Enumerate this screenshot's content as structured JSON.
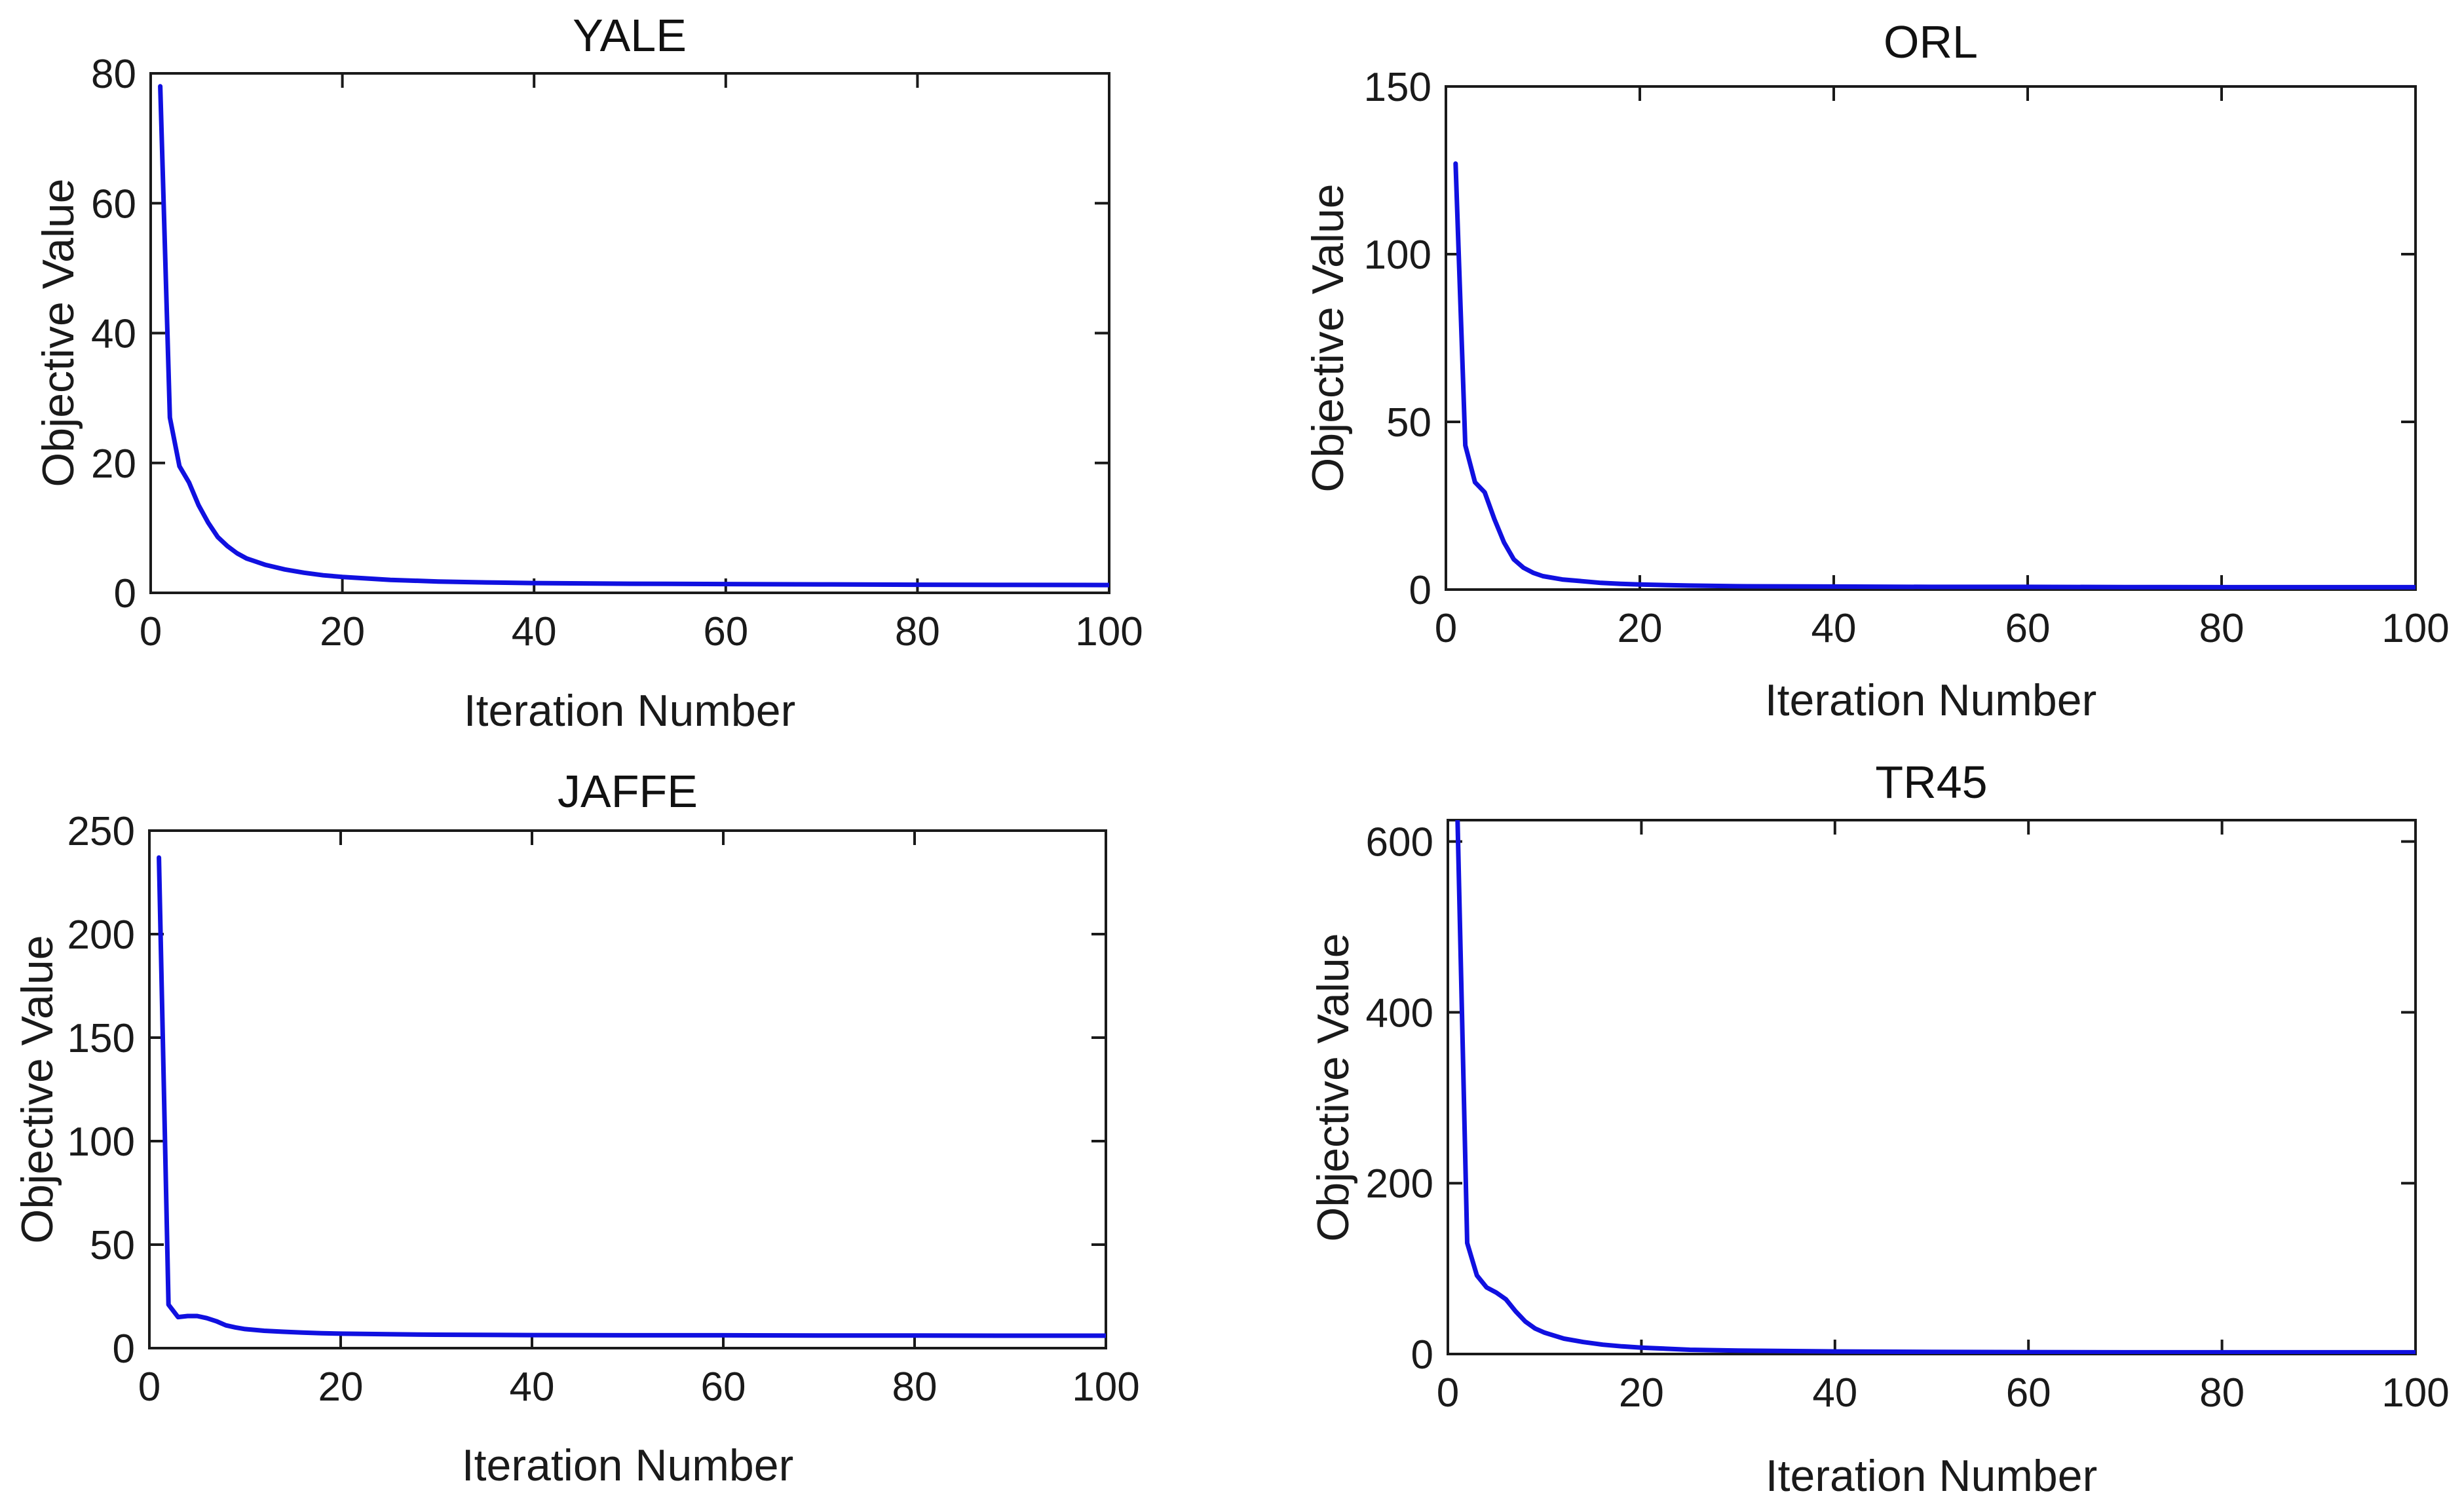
{
  "chart_data": [
    {
      "type": "line",
      "title": "YALE",
      "xlabel": "Iteration Number",
      "ylabel": "Objective Value",
      "xlim": [
        0,
        100
      ],
      "ylim": [
        0,
        80
      ],
      "xticks": [
        0,
        20,
        40,
        60,
        80,
        100
      ],
      "xtick_labels": [
        "0",
        "20",
        "40",
        "60",
        "80",
        "100"
      ],
      "yticks": [
        0,
        20,
        40,
        60,
        80
      ],
      "ytick_labels": [
        "0",
        "20",
        "40",
        "60",
        "80"
      ],
      "grid": false,
      "series": [
        {
          "name": "YALE",
          "color": "#1010e0",
          "x": [
            1,
            2,
            3,
            4,
            5,
            6,
            7,
            8,
            9,
            10,
            12,
            14,
            16,
            18,
            20,
            25,
            30,
            35,
            40,
            50,
            60,
            70,
            80,
            90,
            100
          ],
          "values": [
            78,
            27,
            19.5,
            17,
            13.5,
            10.8,
            8.6,
            7.2,
            6.1,
            5.3,
            4.3,
            3.6,
            3.1,
            2.7,
            2.45,
            2.0,
            1.75,
            1.6,
            1.5,
            1.4,
            1.35,
            1.3,
            1.25,
            1.22,
            1.2
          ]
        }
      ]
    },
    {
      "type": "line",
      "title": "ORL",
      "xlabel": "Iteration Number",
      "ylabel": "Objective Value",
      "xlim": [
        0,
        100
      ],
      "ylim": [
        0,
        150
      ],
      "xticks": [
        0,
        20,
        40,
        60,
        80,
        100
      ],
      "xtick_labels": [
        "0",
        "20",
        "40",
        "60",
        "80",
        "100"
      ],
      "yticks": [
        0,
        50,
        100,
        150
      ],
      "ytick_labels": [
        "0",
        "50",
        "100",
        "150"
      ],
      "grid": false,
      "series": [
        {
          "name": "ORL",
          "color": "#1010e0",
          "x": [
            1,
            2,
            3,
            4,
            5,
            6,
            7,
            8,
            9,
            10,
            12,
            14,
            16,
            18,
            20,
            25,
            30,
            40,
            50,
            60,
            70,
            80,
            90,
            100
          ],
          "values": [
            127,
            43,
            32,
            29,
            21,
            14,
            9,
            6.5,
            5,
            4,
            3,
            2.5,
            2,
            1.7,
            1.5,
            1.2,
            1.0,
            0.9,
            0.8,
            0.8,
            0.75,
            0.7,
            0.7,
            0.7
          ]
        }
      ]
    },
    {
      "type": "line",
      "title": "JAFFE",
      "xlabel": "Iteration Number",
      "ylabel": "Objective Value",
      "xlim": [
        0,
        100
      ],
      "ylim": [
        0,
        250
      ],
      "xticks": [
        0,
        20,
        40,
        60,
        80,
        100
      ],
      "xtick_labels": [
        "0",
        "20",
        "40",
        "60",
        "80",
        "100"
      ],
      "yticks": [
        0,
        50,
        100,
        150,
        200,
        250
      ],
      "ytick_labels": [
        "0",
        "50",
        "100",
        "150",
        "200",
        "250"
      ],
      "grid": false,
      "series": [
        {
          "name": "JAFFE",
          "color": "#1010e0",
          "x": [
            1,
            2,
            3,
            4,
            5,
            6,
            7,
            8,
            9,
            10,
            12,
            14,
            16,
            18,
            20,
            25,
            30,
            40,
            50,
            60,
            70,
            80,
            90,
            100
          ],
          "values": [
            237,
            21,
            15,
            15.5,
            15.5,
            14.5,
            13,
            11,
            10,
            9.2,
            8.4,
            7.9,
            7.5,
            7.2,
            7.0,
            6.7,
            6.5,
            6.3,
            6.2,
            6.2,
            6.1,
            6.1,
            6.0,
            6.0
          ]
        }
      ]
    },
    {
      "type": "line",
      "title": "TR45",
      "xlabel": "Iteration Number",
      "ylabel": "Objective Value",
      "xlim": [
        0,
        100
      ],
      "ylim": [
        0,
        625
      ],
      "xticks": [
        0,
        20,
        40,
        60,
        80,
        100
      ],
      "xtick_labels": [
        "0",
        "20",
        "40",
        "60",
        "80",
        "100"
      ],
      "yticks": [
        0,
        200,
        400,
        600
      ],
      "ytick_labels": [
        "0",
        "200",
        "400",
        "600"
      ],
      "grid": false,
      "series": [
        {
          "name": "TR45",
          "color": "#1010e0",
          "x": [
            1,
            2,
            3,
            4,
            5,
            6,
            7,
            8,
            9,
            10,
            12,
            14,
            16,
            18,
            20,
            25,
            30,
            40,
            50,
            60,
            70,
            80,
            90,
            100
          ],
          "values": [
            625,
            130,
            92,
            78,
            72,
            64,
            50,
            38,
            30,
            25,
            18,
            14,
            11,
            9,
            7.5,
            5,
            4,
            3,
            2.5,
            2.2,
            2,
            2,
            2,
            2
          ]
        }
      ]
    }
  ]
}
